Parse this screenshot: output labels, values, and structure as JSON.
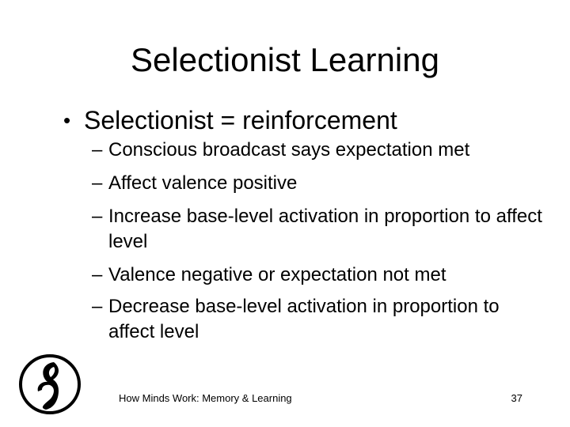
{
  "slide": {
    "title": "Selectionist Learning",
    "bullet": {
      "marker": "•",
      "text": "Selectionist = reinforcement",
      "sub_marker": "–",
      "sub_items": [
        "Conscious broadcast says expectation met",
        "Affect valence positive",
        "Increase base-level activation in proportion to affect level",
        "Valence negative or expectation not met",
        "Decrease base-level activation in proportion to affect level"
      ]
    }
  },
  "footer": {
    "text": "How Minds Work: Memory & Learning",
    "page_number": "37",
    "logo_icon": "university-seal-logo"
  }
}
